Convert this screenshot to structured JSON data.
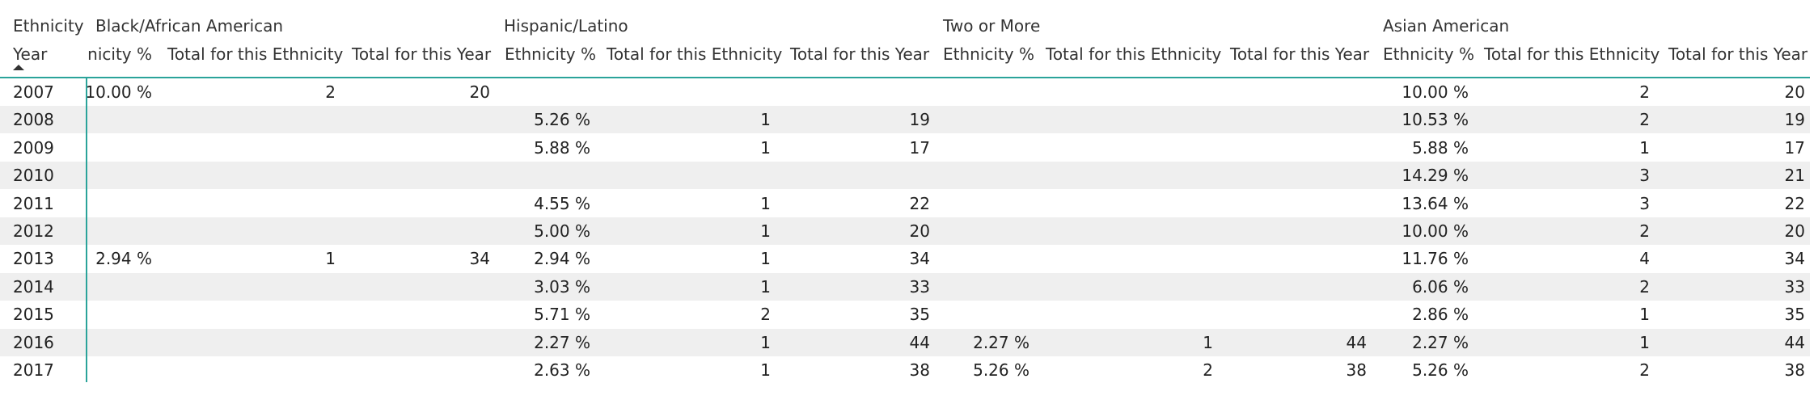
{
  "row_header": {
    "top_label": "Ethnicity",
    "bottom_label": "Year"
  },
  "groups": [
    "Black/African American",
    "Hispanic/Latino",
    "Two or More",
    "Asian American"
  ],
  "black_pct_header_visible": "nicity %",
  "column_headers": [
    "Ethnicity %",
    "Total for this Ethnicity",
    "Total for this Year"
  ],
  "rows": [
    {
      "year": "2007",
      "cells": [
        "10.00 %",
        "2",
        "20",
        "",
        "",
        "",
        "",
        "",
        "",
        "10.00 %",
        "2",
        "20"
      ]
    },
    {
      "year": "2008",
      "cells": [
        "",
        "",
        "",
        "5.26 %",
        "1",
        "19",
        "",
        "",
        "",
        "10.53 %",
        "2",
        "19"
      ]
    },
    {
      "year": "2009",
      "cells": [
        "",
        "",
        "",
        "5.88 %",
        "1",
        "17",
        "",
        "",
        "",
        "5.88 %",
        "1",
        "17"
      ]
    },
    {
      "year": "2010",
      "cells": [
        "",
        "",
        "",
        "",
        "",
        "",
        "",
        "",
        "",
        "14.29 %",
        "3",
        "21"
      ]
    },
    {
      "year": "2011",
      "cells": [
        "",
        "",
        "",
        "4.55 %",
        "1",
        "22",
        "",
        "",
        "",
        "13.64 %",
        "3",
        "22"
      ]
    },
    {
      "year": "2012",
      "cells": [
        "",
        "",
        "",
        "5.00 %",
        "1",
        "20",
        "",
        "",
        "",
        "10.00 %",
        "2",
        "20"
      ]
    },
    {
      "year": "2013",
      "cells": [
        "2.94 %",
        "1",
        "34",
        "2.94 %",
        "1",
        "34",
        "",
        "",
        "",
        "11.76 %",
        "4",
        "34"
      ]
    },
    {
      "year": "2014",
      "cells": [
        "",
        "",
        "",
        "3.03 %",
        "1",
        "33",
        "",
        "",
        "",
        "6.06 %",
        "2",
        "33"
      ]
    },
    {
      "year": "2015",
      "cells": [
        "",
        "",
        "",
        "5.71 %",
        "2",
        "35",
        "",
        "",
        "",
        "2.86 %",
        "1",
        "35"
      ]
    },
    {
      "year": "2016",
      "cells": [
        "",
        "",
        "",
        "2.27 %",
        "1",
        "44",
        "2.27 %",
        "1",
        "44",
        "2.27 %",
        "1",
        "44"
      ]
    },
    {
      "year": "2017",
      "cells": [
        "",
        "",
        "",
        "2.63 %",
        "1",
        "38",
        "5.26 %",
        "2",
        "38",
        "5.26 %",
        "2",
        "38"
      ]
    }
  ]
}
